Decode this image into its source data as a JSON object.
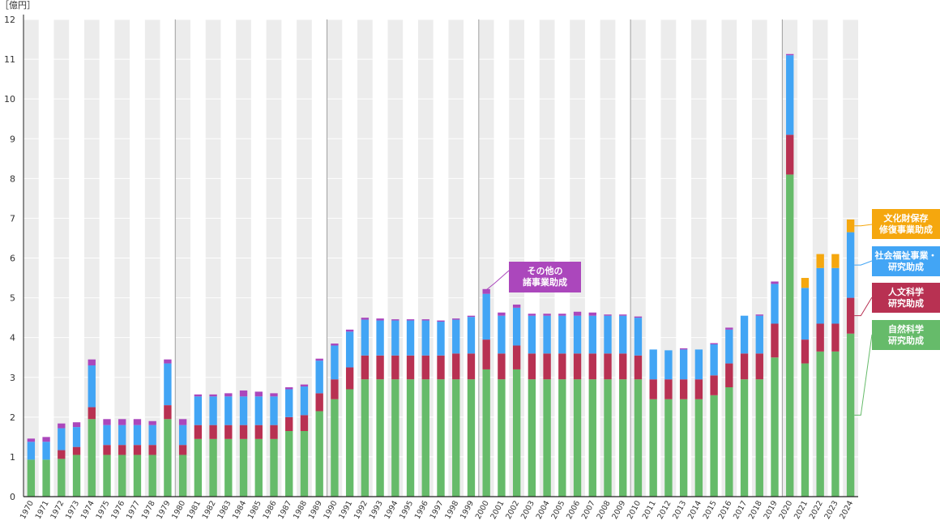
{
  "chart_data": {
    "type": "bar",
    "stacked": true,
    "unit_label": "［億円］",
    "ylim": [
      0,
      12
    ],
    "yticks": [
      0,
      1,
      2,
      3,
      4,
      5,
      6,
      7,
      8,
      9,
      10,
      11,
      12
    ],
    "categories": [
      "1970",
      "1971",
      "1972",
      "1973",
      "1974",
      "1975",
      "1976",
      "1977",
      "1978",
      "1979",
      "1980",
      "1981",
      "1982",
      "1983",
      "1984",
      "1985",
      "1986",
      "1987",
      "1988",
      "1989",
      "1990",
      "1991",
      "1992",
      "1993",
      "1994",
      "1995",
      "1996",
      "1997",
      "1998",
      "1999",
      "2000",
      "2001",
      "2002",
      "2003",
      "2004",
      "2005",
      "2006",
      "2007",
      "2008",
      "2009",
      "2010",
      "2011",
      "2012",
      "2013",
      "2014",
      "2015",
      "2016",
      "2017",
      "2018",
      "2019",
      "2020",
      "2021",
      "2022",
      "2023",
      "2024"
    ],
    "decade_dividers": [
      "1979",
      "1989",
      "1999",
      "2009",
      "2019"
    ],
    "series": [
      {
        "key": "natural",
        "name_lines": [
          "自然科学",
          "研究助成"
        ],
        "color": "#66bb6a",
        "values": [
          0.93,
          0.93,
          0.95,
          1.05,
          1.95,
          1.05,
          1.05,
          1.05,
          1.05,
          1.95,
          1.05,
          1.45,
          1.45,
          1.45,
          1.45,
          1.45,
          1.45,
          1.65,
          1.65,
          2.15,
          2.45,
          2.7,
          2.95,
          2.95,
          2.95,
          2.95,
          2.95,
          2.95,
          2.95,
          2.95,
          3.2,
          2.95,
          3.2,
          2.95,
          2.95,
          2.95,
          2.95,
          2.95,
          2.95,
          2.95,
          2.95,
          2.45,
          2.45,
          2.45,
          2.45,
          2.55,
          2.75,
          2.95,
          2.95,
          3.5,
          8.1,
          3.35,
          3.65,
          3.65,
          4.1
        ]
      },
      {
        "key": "humanities",
        "name_lines": [
          "人文科学",
          "研究助成"
        ],
        "color": "#b83152",
        "values": [
          0,
          0,
          0.22,
          0.2,
          0.3,
          0.25,
          0.25,
          0.25,
          0.25,
          0.35,
          0.25,
          0.35,
          0.35,
          0.35,
          0.35,
          0.35,
          0.35,
          0.35,
          0.4,
          0.45,
          0.5,
          0.55,
          0.6,
          0.6,
          0.6,
          0.6,
          0.6,
          0.6,
          0.65,
          0.65,
          0.75,
          0.65,
          0.6,
          0.65,
          0.65,
          0.65,
          0.65,
          0.65,
          0.65,
          0.65,
          0.6,
          0.5,
          0.5,
          0.5,
          0.5,
          0.5,
          0.6,
          0.65,
          0.65,
          0.85,
          1.0,
          0.6,
          0.7,
          0.7,
          0.9
        ]
      },
      {
        "key": "welfare",
        "name_lines": [
          "社会福祉事業・",
          "研究助成"
        ],
        "color": "#42a5f5",
        "values": [
          0.45,
          0.45,
          0.55,
          0.5,
          1.05,
          0.5,
          0.5,
          0.5,
          0.5,
          1.05,
          0.5,
          0.72,
          0.72,
          0.72,
          0.72,
          0.72,
          0.72,
          0.7,
          0.72,
          0.82,
          0.85,
          0.9,
          0.9,
          0.88,
          0.88,
          0.88,
          0.88,
          0.85,
          0.85,
          0.92,
          1.15,
          0.95,
          0.95,
          0.95,
          0.95,
          0.95,
          0.95,
          0.95,
          0.95,
          0.95,
          0.95,
          0.75,
          0.73,
          0.75,
          0.75,
          0.78,
          0.85,
          0.95,
          0.95,
          1.0,
          2.0,
          1.3,
          1.4,
          1.4,
          1.65
        ]
      },
      {
        "key": "other",
        "name_lines": [
          "その他の",
          "諸事業助成"
        ],
        "color": "#ab47bc",
        "values": [
          0.08,
          0.12,
          0.12,
          0.12,
          0.15,
          0.15,
          0.15,
          0.15,
          0.1,
          0.1,
          0.15,
          0.05,
          0.05,
          0.08,
          0.15,
          0.12,
          0.08,
          0.05,
          0.05,
          0.05,
          0.05,
          0.05,
          0.05,
          0.05,
          0.03,
          0.03,
          0.03,
          0.03,
          0.03,
          0.03,
          0.12,
          0.08,
          0.08,
          0.05,
          0.05,
          0.05,
          0.1,
          0.08,
          0.03,
          0.03,
          0.03,
          0.0,
          0.0,
          0.03,
          0.0,
          0.03,
          0.05,
          0.0,
          0.03,
          0.06,
          0.03,
          0.0,
          0.0,
          0.0,
          0.0
        ]
      },
      {
        "key": "cultural",
        "name_lines": [
          "文化財保存",
          "修復事業助成"
        ],
        "color": "#f5a70e",
        "values": [
          0,
          0,
          0,
          0,
          0,
          0,
          0,
          0,
          0,
          0,
          0,
          0,
          0,
          0,
          0,
          0,
          0,
          0,
          0,
          0,
          0,
          0,
          0,
          0,
          0,
          0,
          0,
          0,
          0,
          0,
          0,
          0,
          0,
          0,
          0,
          0,
          0,
          0,
          0,
          0,
          0,
          0,
          0,
          0,
          0,
          0,
          0,
          0,
          0,
          0,
          0,
          0.25,
          0.35,
          0.35,
          0.32
        ]
      }
    ]
  }
}
